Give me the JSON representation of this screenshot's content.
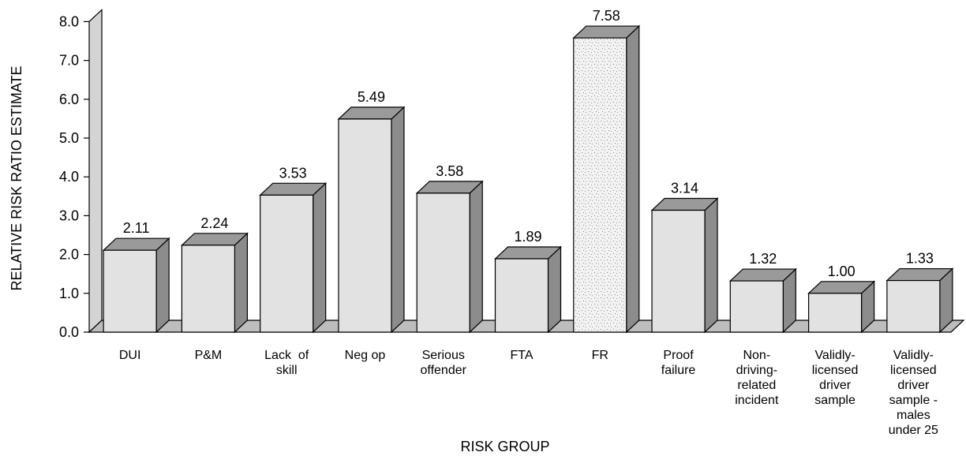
{
  "chart_data": {
    "type": "bar",
    "xlabel": "RISK GROUP",
    "ylabel": "RELATIVE RISK RATIO ESTIMATE",
    "ylim": [
      0,
      8
    ],
    "yticks": [
      "0.0",
      "1.0",
      "2.0",
      "3.0",
      "4.0",
      "5.0",
      "6.0",
      "7.0",
      "8.0"
    ],
    "categories": [
      "DUI",
      "P&M",
      "Lack of skill",
      "Neg op",
      "Serious offender",
      "FTA",
      "FR",
      "Proof failure",
      "Non-driving-related incident",
      "Validly-licensed driver sample",
      "Validly-licensed driver sample - males under 25"
    ],
    "category_lines": [
      [
        "DUI"
      ],
      [
        "P&M"
      ],
      [
        "Lack  of",
        "skill"
      ],
      [
        "Neg op"
      ],
      [
        "Serious",
        "offender"
      ],
      [
        "FTA"
      ],
      [
        "FR"
      ],
      [
        "Proof",
        "failure"
      ],
      [
        "Non-",
        "driving-",
        "related",
        "incident"
      ],
      [
        "Validly-",
        "licensed",
        "driver",
        "sample"
      ],
      [
        "Validly-",
        "licensed",
        "driver",
        "sample -",
        "males",
        "under 25"
      ]
    ],
    "values": [
      2.11,
      2.24,
      3.53,
      5.49,
      3.58,
      1.89,
      7.58,
      3.14,
      1.32,
      1.0,
      1.33
    ],
    "value_labels": [
      "2.11",
      "2.24",
      "3.53",
      "5.49",
      "3.58",
      "1.89",
      "7.58",
      "3.14",
      "1.32",
      "1.00",
      "1.33"
    ],
    "highlighted_category": "FR",
    "colors": {
      "bar_front": "#e2e2e2",
      "bar_top": "#9a9a9a",
      "bar_side": "#8c8c8c",
      "wall": "#d4d4d4",
      "floor": "#bdbdbd",
      "highlight_front": "#f2f2f2"
    },
    "grid": false,
    "legend": "none"
  }
}
